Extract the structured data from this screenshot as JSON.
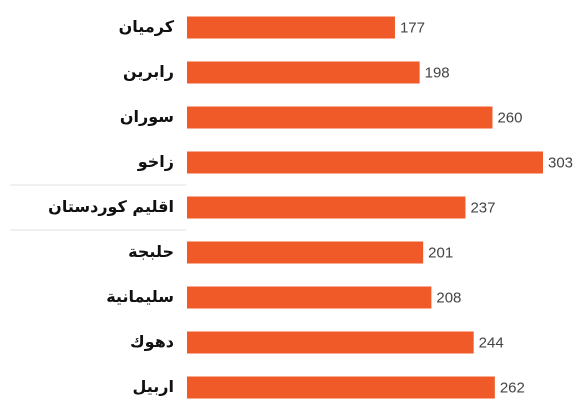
{
  "chart_data": {
    "type": "bar",
    "orientation": "horizontal",
    "categories": [
      "كرميان",
      "رابرين",
      "سوران",
      "زاخو",
      "اقليم كوردستان",
      "حلبجة",
      "سليمانية",
      "دهوك",
      "اربيل"
    ],
    "values": [
      177,
      198,
      260,
      303,
      237,
      201,
      208,
      244,
      262
    ],
    "color": "#f05a28"
  }
}
